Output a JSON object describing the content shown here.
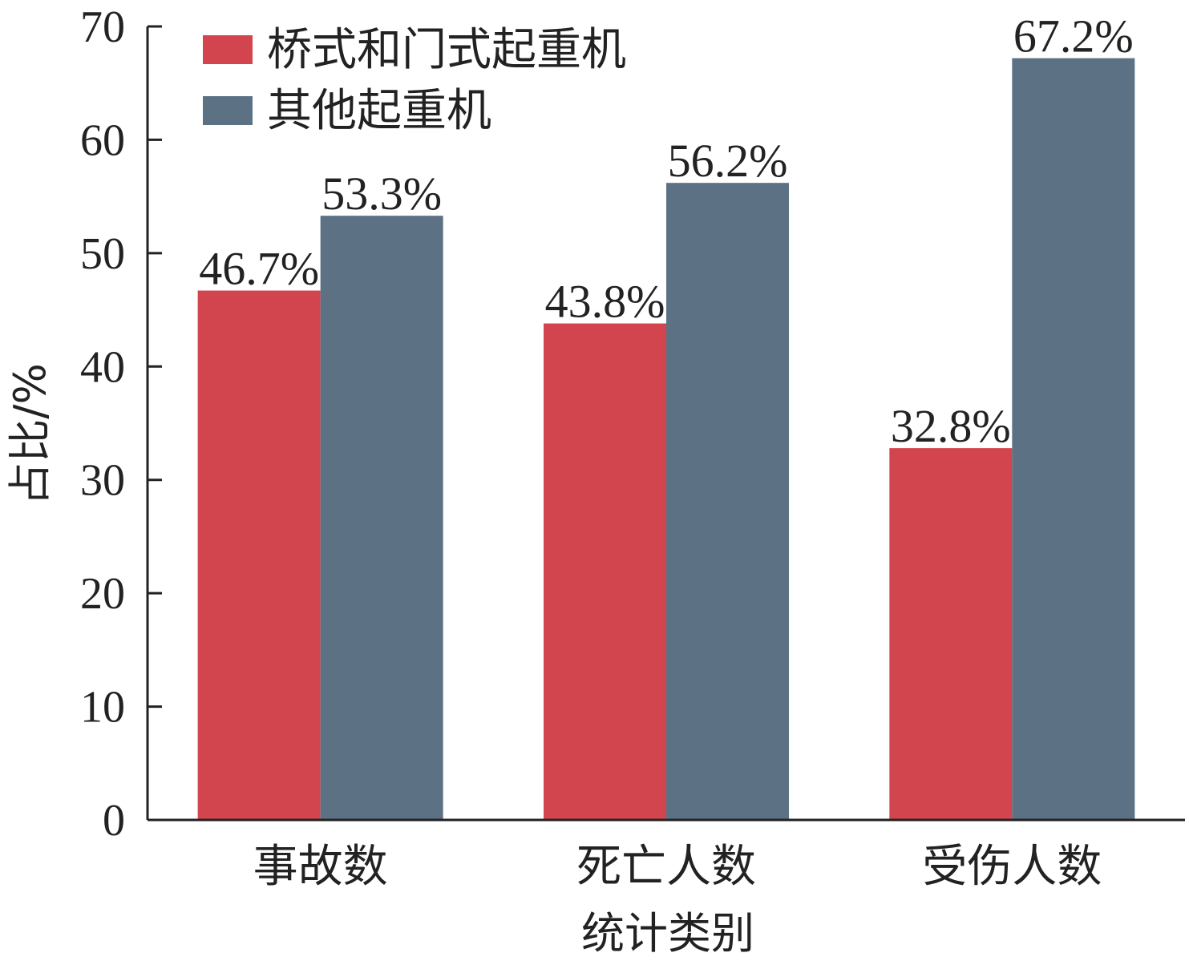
{
  "chart_data": {
    "type": "bar",
    "categories": [
      "事故数",
      "死亡人数",
      "受伤人数"
    ],
    "series": [
      {
        "name": "桥式和门式起重机",
        "color": "#d2454e",
        "values": [
          46.7,
          43.8,
          32.8
        ],
        "labels": [
          "46.7%",
          "43.8%",
          "32.8%"
        ]
      },
      {
        "name": "其他起重机",
        "color": "#5d7185",
        "values": [
          53.3,
          56.2,
          67.2
        ],
        "labels": [
          "53.3%",
          "56.2%",
          "67.2%"
        ]
      }
    ],
    "xlabel": "统计类别",
    "ylabel": "占比/%",
    "ylim": [
      0,
      70
    ],
    "yticks": [
      0,
      10,
      20,
      30,
      40,
      50,
      60,
      70
    ],
    "grid": false,
    "legend": "top-left"
  }
}
